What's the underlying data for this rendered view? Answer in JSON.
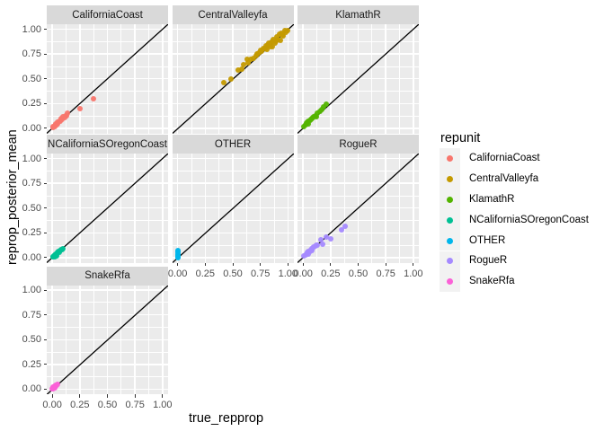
{
  "figure": {
    "background": "#FFFFFF",
    "panel_bg": "#EBEBEB",
    "strip_bg": "#D9D9D9",
    "grid_color": "#FFFFFF",
    "abline_color": "#000000",
    "tick_text_color": "#4D4D4D"
  },
  "legend": {
    "title": "repunit",
    "items": [
      {
        "label": "CaliforniaCoast",
        "color": "#F8766D"
      },
      {
        "label": "CentralValleyfa",
        "color": "#C49A00"
      },
      {
        "label": "KlamathR",
        "color": "#53B400"
      },
      {
        "label": "NCaliforniaSOregonCoast",
        "color": "#00C094"
      },
      {
        "label": "OTHER",
        "color": "#00B6EB"
      },
      {
        "label": "RogueR",
        "color": "#A58AFF"
      },
      {
        "label": "SnakeRfa",
        "color": "#FB61D7"
      }
    ]
  },
  "chart_data": {
    "type": "scatter",
    "xlabel": "true_repprop",
    "ylabel": "reprop_posterior_mean",
    "xlim": [
      0,
      1
    ],
    "ylim": [
      0,
      1
    ],
    "tick_values": [
      0,
      0.25,
      0.5,
      0.75,
      1.0
    ],
    "tick_labels": [
      "0.00",
      "0.25",
      "0.50",
      "0.75",
      "1.00"
    ],
    "minor_tick_values": [
      0.125,
      0.375,
      0.625,
      0.875
    ],
    "grid": true,
    "legend_position": "right",
    "facet_by": "repunit",
    "abline": {
      "slope": 1,
      "intercept": 0
    },
    "facets": [
      {
        "name": "CaliforniaCoast",
        "row": 0,
        "col": 0,
        "color": "#F8766D",
        "points": [
          [
            0.005,
            0.01
          ],
          [
            0.01,
            0.02
          ],
          [
            0.02,
            0.015
          ],
          [
            0.02,
            0.03
          ],
          [
            0.03,
            0.045
          ],
          [
            0.04,
            0.04
          ],
          [
            0.05,
            0.06
          ],
          [
            0.05,
            0.045
          ],
          [
            0.06,
            0.075
          ],
          [
            0.07,
            0.07
          ],
          [
            0.08,
            0.095
          ],
          [
            0.09,
            0.09
          ],
          [
            0.1,
            0.115
          ],
          [
            0.11,
            0.105
          ],
          [
            0.12,
            0.13
          ],
          [
            0.13,
            0.125
          ],
          [
            0.14,
            0.155
          ],
          [
            0.25,
            0.2
          ],
          [
            0.37,
            0.3
          ]
        ]
      },
      {
        "name": "CentralValleyfa",
        "row": 0,
        "col": 1,
        "color": "#C49A00",
        "points": [
          [
            0.42,
            0.46
          ],
          [
            0.48,
            0.5
          ],
          [
            0.55,
            0.59
          ],
          [
            0.58,
            0.6
          ],
          [
            0.6,
            0.64
          ],
          [
            0.63,
            0.7
          ],
          [
            0.64,
            0.66
          ],
          [
            0.66,
            0.7
          ],
          [
            0.69,
            0.71
          ],
          [
            0.71,
            0.73
          ],
          [
            0.72,
            0.75
          ],
          [
            0.74,
            0.76
          ],
          [
            0.75,
            0.79
          ],
          [
            0.76,
            0.78
          ],
          [
            0.78,
            0.81
          ],
          [
            0.79,
            0.81
          ],
          [
            0.8,
            0.83
          ],
          [
            0.81,
            0.8
          ],
          [
            0.82,
            0.84
          ],
          [
            0.83,
            0.86
          ],
          [
            0.84,
            0.82
          ],
          [
            0.85,
            0.87
          ],
          [
            0.86,
            0.82
          ],
          [
            0.86,
            0.88
          ],
          [
            0.87,
            0.9
          ],
          [
            0.88,
            0.86
          ],
          [
            0.89,
            0.88
          ],
          [
            0.9,
            0.92
          ],
          [
            0.91,
            0.9
          ],
          [
            0.92,
            0.95
          ],
          [
            0.93,
            0.89
          ],
          [
            0.94,
            0.96
          ],
          [
            0.95,
            0.94
          ],
          [
            0.96,
            0.93
          ],
          [
            0.97,
            0.99
          ],
          [
            0.98,
            0.97
          ],
          [
            1.0,
            0.99
          ]
        ]
      },
      {
        "name": "KlamathR",
        "row": 0,
        "col": 2,
        "color": "#53B400",
        "points": [
          [
            0.01,
            0.02
          ],
          [
            0.02,
            0.04
          ],
          [
            0.03,
            0.05
          ],
          [
            0.04,
            0.06
          ],
          [
            0.05,
            0.07
          ],
          [
            0.05,
            0.045
          ],
          [
            0.06,
            0.08
          ],
          [
            0.07,
            0.09
          ],
          [
            0.08,
            0.1
          ],
          [
            0.09,
            0.11
          ],
          [
            0.1,
            0.12
          ],
          [
            0.11,
            0.13
          ],
          [
            0.12,
            0.12
          ],
          [
            0.13,
            0.15
          ],
          [
            0.15,
            0.17
          ],
          [
            0.17,
            0.19
          ],
          [
            0.19,
            0.22
          ],
          [
            0.21,
            0.24
          ]
        ]
      },
      {
        "name": "NCaliforniaSOregonCoast",
        "row": 1,
        "col": 0,
        "color": "#00C094",
        "points": [
          [
            0.005,
            0.005
          ],
          [
            0.01,
            0.01
          ],
          [
            0.015,
            0.02
          ],
          [
            0.02,
            0.018
          ],
          [
            0.02,
            0.005
          ],
          [
            0.025,
            0.03
          ],
          [
            0.03,
            0.028
          ],
          [
            0.03,
            0.015
          ],
          [
            0.035,
            0.04
          ],
          [
            0.04,
            0.038
          ],
          [
            0.04,
            0.02
          ],
          [
            0.05,
            0.05
          ],
          [
            0.055,
            0.06
          ],
          [
            0.06,
            0.058
          ],
          [
            0.07,
            0.07
          ],
          [
            0.08,
            0.078
          ],
          [
            0.09,
            0.085
          ],
          [
            0.1,
            0.09
          ]
        ]
      },
      {
        "name": "OTHER",
        "row": 1,
        "col": 1,
        "color": "#00B6EB",
        "points": [
          [
            0.0,
            0.0
          ],
          [
            0.0,
            0.01
          ],
          [
            0.001,
            0.015
          ],
          [
            0.002,
            0.005
          ],
          [
            0.002,
            0.03
          ],
          [
            0.003,
            0.04
          ],
          [
            0.004,
            0.05
          ],
          [
            0.005,
            0.06
          ],
          [
            0.006,
            0.07
          ],
          [
            0.0,
            0.02
          ]
        ]
      },
      {
        "name": "RogueR",
        "row": 1,
        "col": 2,
        "color": "#A58AFF",
        "points": [
          [
            0.01,
            0.02
          ],
          [
            0.02,
            0.03
          ],
          [
            0.03,
            0.04
          ],
          [
            0.04,
            0.05
          ],
          [
            0.05,
            0.06
          ],
          [
            0.05,
            0.04
          ],
          [
            0.06,
            0.06
          ],
          [
            0.07,
            0.08
          ],
          [
            0.08,
            0.09
          ],
          [
            0.08,
            0.07
          ],
          [
            0.09,
            0.1
          ],
          [
            0.1,
            0.11
          ],
          [
            0.11,
            0.12
          ],
          [
            0.12,
            0.13
          ],
          [
            0.13,
            0.13
          ],
          [
            0.16,
            0.18
          ],
          [
            0.18,
            0.14
          ],
          [
            0.21,
            0.21
          ],
          [
            0.25,
            0.19
          ],
          [
            0.35,
            0.28
          ],
          [
            0.38,
            0.32
          ]
        ]
      },
      {
        "name": "SnakeRfa",
        "row": 2,
        "col": 0,
        "color": "#FB61D7",
        "points": [
          [
            0.0,
            0.005
          ],
          [
            0.005,
            0.01
          ],
          [
            0.01,
            0.02
          ],
          [
            0.01,
            0.0
          ],
          [
            0.015,
            0.015
          ],
          [
            0.02,
            0.03
          ],
          [
            0.02,
            0.01
          ],
          [
            0.025,
            0.025
          ],
          [
            0.03,
            0.04
          ],
          [
            0.035,
            0.03
          ],
          [
            0.04,
            0.045
          ],
          [
            0.05,
            0.05
          ]
        ]
      }
    ]
  }
}
